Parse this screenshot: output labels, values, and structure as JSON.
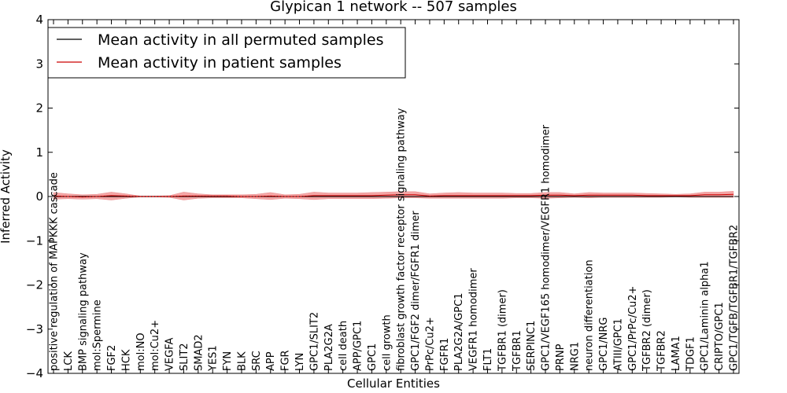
{
  "chart_data": {
    "type": "line",
    "title": "Glypican 1 network -- 507 samples",
    "xlabel": "Cellular Entities",
    "ylabel": "Inferred Activity",
    "ylim": [
      -4,
      4
    ],
    "yticks": [
      -4,
      -3,
      -2,
      -1,
      0,
      1,
      2,
      3,
      4
    ],
    "legend_position": "top-left",
    "categories": [
      "positive regulation of MAPKKK cascade",
      "LCK",
      "BMP signaling pathway",
      "mol:Spermine",
      "FGF2",
      "HCK",
      "mol:NO",
      "mol:Cu2+",
      "VEGFA",
      "SLIT2",
      "SMAD2",
      "YES1",
      "FYN",
      "BLK",
      "SRC",
      "APP",
      "FGR",
      "LYN",
      "GPC1/SLIT2",
      "PLA2G2A",
      "cell death",
      "APP/GPC1",
      "GPC1",
      "cell growth",
      "fibroblast growth factor receptor signaling pathway",
      "GPC1/FGF2 dimer/FGFR1 dimer",
      "PrPc/Cu2+",
      "FGFR1",
      "PLA2G2A/GPC1",
      "VEGFR1 homodimer",
      "FLT1",
      "TGFBR1 (dimer)",
      "TGFBR1",
      "SERPINC1",
      "GPC1/VEGF165 homodimer/VEGFR1 homodimer",
      "PRNP",
      "NRG1",
      "neuron differentiation",
      "GPC1/NRG",
      "ATIII/GPC1",
      "GPC1/PrPc/Cu2+",
      "TGFBR2 (dimer)",
      "TGFBR2",
      "LAMA1",
      "TDGF1",
      "GPC1/Laminin alpha1",
      "CRIPTO/GPC1",
      "GPC1/TGFB/TGFBR1/TGFBR2"
    ],
    "series": [
      {
        "name": "Mean activity in all permuted samples",
        "color": "#000000",
        "style": "solid",
        "values": [
          0,
          0,
          0,
          0,
          0,
          0,
          0,
          0,
          0,
          0,
          0,
          0,
          0,
          0,
          0,
          0,
          0,
          0,
          0,
          0,
          0,
          0,
          0,
          0,
          0,
          0,
          0,
          0,
          0,
          0,
          0,
          0,
          0,
          0,
          0,
          0,
          0,
          0,
          0,
          0,
          0,
          0,
          0,
          0,
          0,
          0,
          0,
          0
        ]
      },
      {
        "name": "Mean activity in patient samples",
        "color": "#cc0000",
        "style": "solid",
        "values": [
          0.01,
          0.0,
          -0.01,
          0.0,
          0.02,
          0.01,
          0.0,
          0.0,
          0.0,
          0.01,
          0.01,
          0.01,
          0.01,
          0.0,
          0.0,
          0.01,
          0.0,
          0.0,
          0.02,
          0.02,
          0.02,
          0.02,
          0.02,
          0.03,
          0.04,
          0.04,
          0.01,
          0.02,
          0.02,
          0.02,
          0.02,
          0.02,
          0.02,
          0.02,
          0.03,
          0.03,
          0.02,
          0.03,
          0.03,
          0.03,
          0.03,
          0.02,
          0.02,
          0.02,
          0.02,
          0.04,
          0.04,
          0.05
        ],
        "band_upper": [
          0.09,
          0.06,
          0.04,
          0.05,
          0.1,
          0.06,
          0.01,
          0.01,
          0.02,
          0.1,
          0.06,
          0.04,
          0.04,
          0.04,
          0.05,
          0.09,
          0.04,
          0.05,
          0.1,
          0.08,
          0.08,
          0.08,
          0.09,
          0.1,
          0.11,
          0.11,
          0.06,
          0.08,
          0.09,
          0.08,
          0.08,
          0.08,
          0.07,
          0.07,
          0.09,
          0.09,
          0.06,
          0.09,
          0.08,
          0.08,
          0.08,
          0.07,
          0.06,
          0.05,
          0.06,
          0.1,
          0.1,
          0.12
        ],
        "band_lower": [
          -0.06,
          -0.05,
          -0.06,
          -0.05,
          -0.08,
          -0.04,
          -0.01,
          -0.01,
          -0.02,
          -0.08,
          -0.04,
          -0.03,
          -0.03,
          -0.03,
          -0.05,
          -0.07,
          -0.04,
          -0.05,
          -0.07,
          -0.05,
          -0.05,
          -0.05,
          -0.05,
          -0.04,
          -0.03,
          -0.03,
          -0.04,
          -0.04,
          -0.04,
          -0.04,
          -0.04,
          -0.04,
          -0.03,
          -0.03,
          -0.04,
          -0.03,
          -0.02,
          -0.03,
          -0.02,
          -0.02,
          -0.02,
          -0.02,
          -0.02,
          -0.01,
          -0.02,
          -0.02,
          -0.02,
          -0.02
        ]
      }
    ],
    "permuted_band_upper": 0.02,
    "permuted_band_lower": -0.02,
    "permuted_band_color": "#bbbbbb"
  }
}
